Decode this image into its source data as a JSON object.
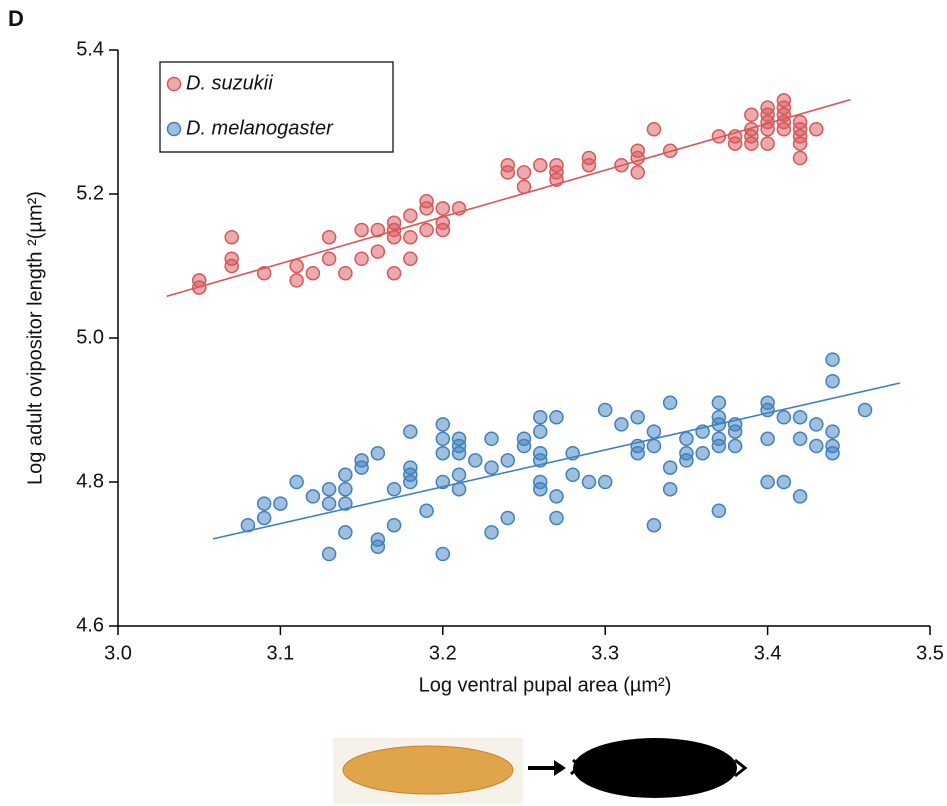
{
  "chart_data": {
    "type": "scatter",
    "panel_label": "D",
    "x_label": "Log ventral pupal area (µm²)",
    "y_label": "Log adult ovipositor length ²(µm²)",
    "xlim": [
      3.0,
      3.5
    ],
    "xticks": [
      {
        "value": 3.0,
        "label": "3.0"
      },
      3.1,
      3.2,
      3.3,
      3.4,
      3.5
    ],
    "ylim": [
      4.6,
      5.4
    ],
    "yticks": [
      4.6,
      4.8,
      {
        "value": 5.0,
        "label": "5.0"
      },
      5.2,
      5.4
    ],
    "legend": "top-left",
    "series": [
      {
        "name": "D. suzukii",
        "color": "#d7575a",
        "x": [
          3.05,
          3.05,
          3.07,
          3.07,
          3.07,
          3.09,
          3.11,
          3.11,
          3.12,
          3.13,
          3.13,
          3.14,
          3.15,
          3.15,
          3.16,
          3.16,
          3.17,
          3.17,
          3.17,
          3.17,
          3.18,
          3.18,
          3.18,
          3.19,
          3.19,
          3.19,
          3.2,
          3.2,
          3.2,
          3.21,
          3.24,
          3.24,
          3.25,
          3.25,
          3.26,
          3.27,
          3.27,
          3.27,
          3.29,
          3.29,
          3.31,
          3.32,
          3.32,
          3.32,
          3.33,
          3.34,
          3.37,
          3.38,
          3.38,
          3.39,
          3.39,
          3.39,
          3.39,
          3.4,
          3.4,
          3.4,
          3.4,
          3.4,
          3.41,
          3.41,
          3.41,
          3.41,
          3.41,
          3.42,
          3.42,
          3.42,
          3.42,
          3.42,
          3.43
        ],
        "values": [
          5.08,
          5.07,
          5.14,
          5.11,
          5.1,
          5.09,
          5.1,
          5.08,
          5.09,
          5.14,
          5.11,
          5.09,
          5.15,
          5.11,
          5.15,
          5.12,
          5.16,
          5.15,
          5.14,
          5.09,
          5.17,
          5.14,
          5.11,
          5.19,
          5.18,
          5.15,
          5.18,
          5.16,
          5.15,
          5.18,
          5.24,
          5.23,
          5.23,
          5.21,
          5.24,
          5.24,
          5.23,
          5.22,
          5.25,
          5.24,
          5.24,
          5.26,
          5.25,
          5.23,
          5.29,
          5.26,
          5.28,
          5.28,
          5.27,
          5.31,
          5.29,
          5.28,
          5.27,
          5.32,
          5.31,
          5.3,
          5.29,
          5.27,
          5.33,
          5.32,
          5.31,
          5.3,
          5.29,
          5.3,
          5.29,
          5.28,
          5.27,
          5.25,
          5.29
        ],
        "fit": {
          "x": [
            3.03,
            3.451
          ],
          "values": [
            5.058,
            5.331
          ]
        }
      },
      {
        "name": "D. melanogaster",
        "color": "#3f80bf",
        "x": [
          3.08,
          3.09,
          3.09,
          3.1,
          3.11,
          3.12,
          3.13,
          3.13,
          3.13,
          3.14,
          3.14,
          3.14,
          3.14,
          3.15,
          3.15,
          3.16,
          3.16,
          3.16,
          3.17,
          3.17,
          3.18,
          3.18,
          3.18,
          3.18,
          3.19,
          3.2,
          3.2,
          3.2,
          3.2,
          3.2,
          3.21,
          3.21,
          3.21,
          3.21,
          3.21,
          3.22,
          3.23,
          3.23,
          3.23,
          3.24,
          3.24,
          3.25,
          3.25,
          3.26,
          3.26,
          3.26,
          3.26,
          3.26,
          3.26,
          3.27,
          3.27,
          3.27,
          3.28,
          3.28,
          3.29,
          3.3,
          3.3,
          3.31,
          3.32,
          3.32,
          3.32,
          3.33,
          3.33,
          3.33,
          3.34,
          3.34,
          3.34,
          3.35,
          3.35,
          3.35,
          3.36,
          3.36,
          3.37,
          3.37,
          3.37,
          3.37,
          3.37,
          3.37,
          3.38,
          3.38,
          3.38,
          3.4,
          3.4,
          3.4,
          3.4,
          3.41,
          3.41,
          3.42,
          3.42,
          3.42,
          3.43,
          3.43,
          3.44,
          3.44,
          3.44,
          3.44,
          3.44,
          3.46
        ],
        "values": [
          4.74,
          4.77,
          4.75,
          4.77,
          4.8,
          4.78,
          4.79,
          4.77,
          4.7,
          4.81,
          4.79,
          4.77,
          4.73,
          4.83,
          4.82,
          4.84,
          4.72,
          4.71,
          4.79,
          4.74,
          4.87,
          4.82,
          4.81,
          4.8,
          4.76,
          4.88,
          4.86,
          4.84,
          4.8,
          4.7,
          4.86,
          4.85,
          4.84,
          4.81,
          4.79,
          4.83,
          4.86,
          4.82,
          4.73,
          4.83,
          4.75,
          4.86,
          4.85,
          4.89,
          4.87,
          4.84,
          4.83,
          4.8,
          4.79,
          4.89,
          4.78,
          4.75,
          4.84,
          4.81,
          4.8,
          4.9,
          4.8,
          4.88,
          4.89,
          4.85,
          4.84,
          4.87,
          4.85,
          4.74,
          4.91,
          4.82,
          4.79,
          4.86,
          4.84,
          4.83,
          4.87,
          4.84,
          4.91,
          4.89,
          4.88,
          4.86,
          4.85,
          4.76,
          4.88,
          4.87,
          4.85,
          4.91,
          4.9,
          4.86,
          4.8,
          4.89,
          4.8,
          4.89,
          4.86,
          4.78,
          4.88,
          4.85,
          4.97,
          4.94,
          4.87,
          4.85,
          4.84,
          4.9
        ],
        "fit": {
          "x": [
            3.0585,
            3.4815
          ],
          "values": [
            4.721,
            4.9375
          ]
        }
      }
    ]
  }
}
